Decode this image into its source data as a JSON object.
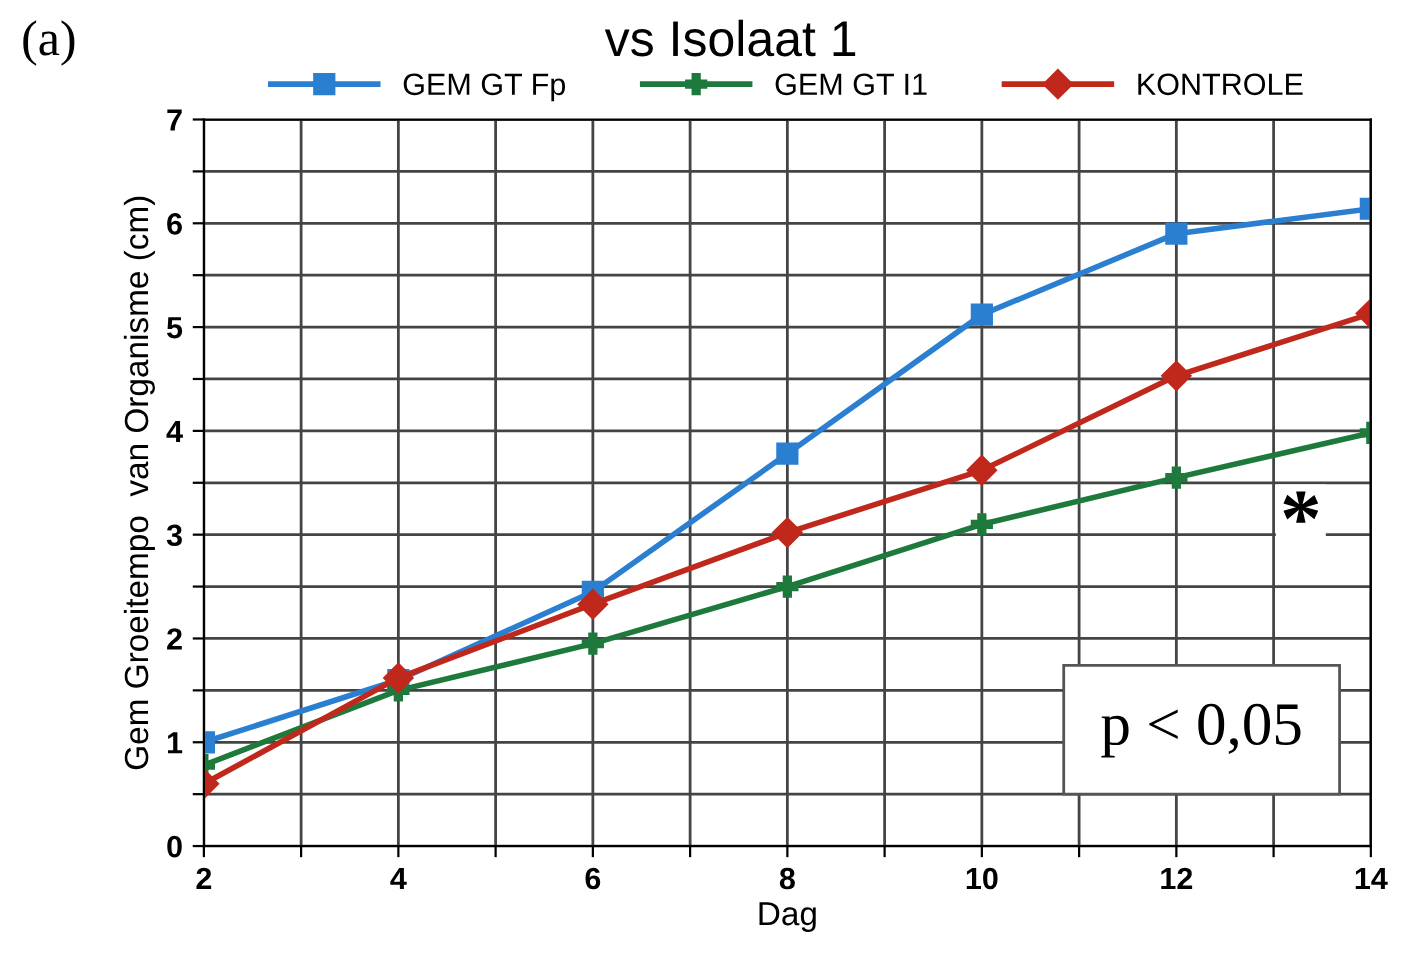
{
  "chart_data": {
    "type": "line",
    "title": "vs Isolaat 1",
    "xlabel": "Dag",
    "ylabel": "Gem Groeitempo  van Organisme (cm)",
    "x": [
      2,
      4,
      6,
      8,
      10,
      12,
      14
    ],
    "series": [
      {
        "name": "GEM GT Fp",
        "color": "#2a7fd0",
        "marker": "square",
        "values": [
          1.0,
          1.6,
          2.45,
          3.78,
          5.12,
          5.9,
          6.14
        ]
      },
      {
        "name": "GEM GT I1",
        "color": "#1e7a3c",
        "marker": "cross",
        "values": [
          0.78,
          1.5,
          1.95,
          2.5,
          3.1,
          3.55,
          3.98
        ]
      },
      {
        "name": "KONTROLE",
        "color": "#c0281c",
        "marker": "diamond",
        "values": [
          0.6,
          1.62,
          2.33,
          3.02,
          3.62,
          4.53,
          5.13
        ]
      }
    ],
    "xlim": [
      2,
      14
    ],
    "ylim": [
      0,
      7
    ],
    "xticks": [
      2,
      {
        "value": 3,
        "label": null
      },
      4,
      {
        "value": 5,
        "label": null
      },
      6,
      {
        "value": 7,
        "label": null
      },
      8,
      {
        "value": 9,
        "label": null
      },
      10,
      {
        "value": 11,
        "label": null
      },
      12,
      {
        "value": 13,
        "label": null
      },
      14
    ],
    "yticks": [
      0,
      {
        "value": 0.5,
        "label": null
      },
      1,
      {
        "value": 1.5,
        "label": null
      },
      2,
      {
        "value": 2.5,
        "label": null
      },
      3,
      {
        "value": 3.5,
        "label": null
      },
      4,
      {
        "value": 4.5,
        "label": null
      },
      5,
      {
        "value": 5.5,
        "label": null
      },
      6,
      {
        "value": 6.5,
        "label": null
      },
      7
    ],
    "grid": true,
    "legend": "top",
    "line_style": "solid",
    "annotations": [
      "(a)",
      "*",
      "p < 0,05"
    ]
  }
}
